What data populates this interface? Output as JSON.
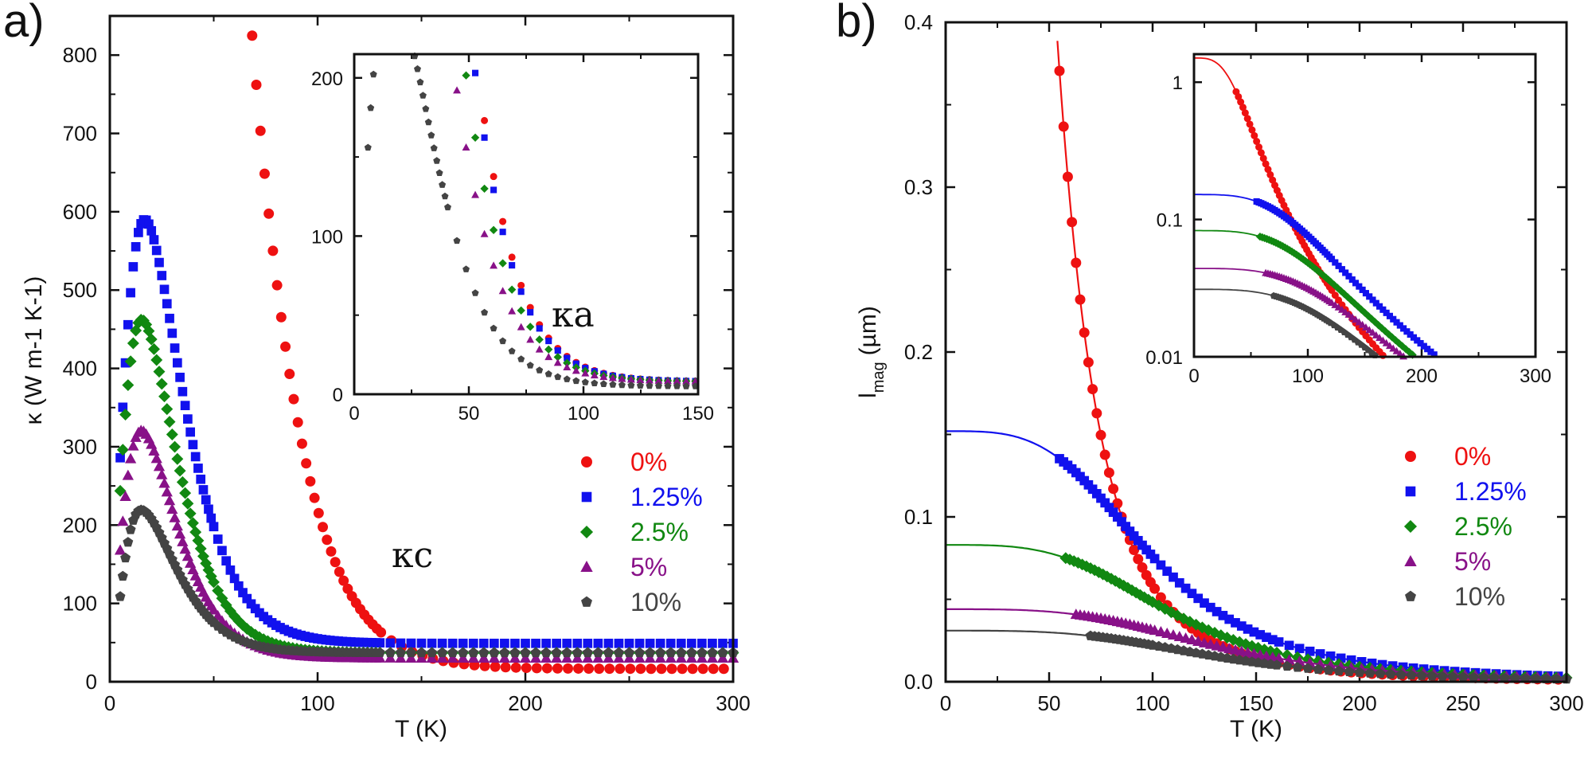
{
  "colors": {
    "s0": "#ee1111",
    "s1": "#1111ee",
    "s2": "#118811",
    "s3": "#881188",
    "s4": "#444444"
  },
  "chart_data": [
    {
      "id": "panel-a",
      "panel_label": "a)",
      "type": "scatter",
      "xlabel": "T (K)",
      "ylabel": "κ (W m-1 K-1)",
      "xlim": [
        0,
        300
      ],
      "ylim": [
        0,
        850
      ],
      "xticks": [
        0,
        100,
        200,
        300
      ],
      "yticks": [
        0,
        100,
        200,
        300,
        400,
        500,
        600,
        700,
        800
      ],
      "legend_position": "right-middle",
      "annotation": "κc",
      "series": [
        {
          "name": "0%",
          "marker": "circle",
          "color_key": "s0",
          "model": {
            "a": 7000,
            "b": 16.5,
            "c": 1.4,
            "d": 16.5,
            "e": 15,
            "f": 3.5
          },
          "t_min": 8
        },
        {
          "name": "1.25%",
          "marker": "square",
          "color_key": "s1",
          "model": {
            "a": 1400,
            "b": 12,
            "c": 1.35,
            "d": 49,
            "e": 12,
            "f": 3.2
          },
          "t_min": 5
        },
        {
          "name": "2.5%",
          "marker": "diamond",
          "color_key": "s2",
          "model": {
            "a": 1100,
            "b": 11,
            "c": 1.35,
            "d": 37,
            "e": 11,
            "f": 3.2
          },
          "t_min": 5
        },
        {
          "name": "5%",
          "marker": "triangle",
          "color_key": "s3",
          "model": {
            "a": 750,
            "b": 11,
            "c": 1.35,
            "d": 30,
            "e": 10,
            "f": 3.0
          },
          "t_min": 5
        },
        {
          "name": "10%",
          "marker": "pentagon",
          "color_key": "s4",
          "model": {
            "a": 470,
            "b": 11,
            "c": 1.35,
            "d": 37,
            "e": 9,
            "f": 3.0
          },
          "t_min": 5
        }
      ]
    },
    {
      "id": "panel-a-inset",
      "type": "scatter",
      "xlabel": "",
      "ylabel": "",
      "xlim": [
        0,
        150
      ],
      "ylim": [
        0,
        215
      ],
      "xticks": [
        0,
        50,
        100,
        150
      ],
      "yticks": [
        0,
        100,
        200
      ],
      "annotation": "κa",
      "series": [
        {
          "name": "0%",
          "marker": "circle",
          "color_key": "s0",
          "model": {
            "a": 2300,
            "b": 12,
            "c": 1.35,
            "d": 8,
            "e": 9,
            "f": 3.0
          },
          "t_min": 6
        },
        {
          "name": "1.25%",
          "marker": "square",
          "color_key": "s1",
          "model": {
            "a": 2150,
            "b": 12,
            "c": 1.35,
            "d": 8,
            "e": 10,
            "f": 3.0
          },
          "t_min": 6
        },
        {
          "name": "2.5%",
          "marker": "diamond",
          "color_key": "s2",
          "model": {
            "a": 1700,
            "b": 12,
            "c": 1.35,
            "d": 8,
            "e": 9.5,
            "f": 3.0
          },
          "t_min": 6
        },
        {
          "name": "5%",
          "marker": "triangle",
          "color_key": "s3",
          "model": {
            "a": 1300,
            "b": 12,
            "c": 1.35,
            "d": 8,
            "e": 9,
            "f": 3.0
          },
          "t_min": 6
        },
        {
          "name": "10%",
          "marker": "pentagon",
          "color_key": "s4",
          "model": {
            "a": 650,
            "b": 12,
            "c": 1.35,
            "d": 5,
            "e": 9,
            "f": 3.0
          },
          "t_min": 6
        }
      ]
    },
    {
      "id": "panel-b",
      "panel_label": "b)",
      "type": "scatter",
      "xlabel": "T (K)",
      "ylabel_main": "l",
      "ylabel_sub": "mag",
      "ylabel_unit": "(µm)",
      "xlim": [
        0,
        300
      ],
      "ylim": [
        0,
        0.4
      ],
      "xticks": [
        0,
        50,
        100,
        150,
        200,
        250,
        300
      ],
      "yticks": [
        0.0,
        0.1,
        0.2,
        0.3,
        0.4
      ],
      "ytick_labels": [
        "0.0",
        "0.1",
        "0.2",
        "0.3",
        "0.4"
      ],
      "legend_position": "right-middle",
      "series": [
        {
          "name": "0%",
          "marker": "circle",
          "color_key": "s0",
          "l0": 1.5,
          "T0": 40,
          "n": 3.5,
          "data_from": 37
        },
        {
          "name": "1.25%",
          "marker": "square",
          "color_key": "s1",
          "l0": 0.152,
          "T0": 100,
          "n": 3.5,
          "data_from": 55
        },
        {
          "name": "2.5%",
          "marker": "diamond",
          "color_key": "s2",
          "l0": 0.083,
          "T0": 110,
          "n": 3.5,
          "data_from": 58
        },
        {
          "name": "5%",
          "marker": "triangle",
          "color_key": "s3",
          "l0": 0.044,
          "T0": 130,
          "n": 3.5,
          "data_from": 63
        },
        {
          "name": "10%",
          "marker": "pentagon",
          "color_key": "s4",
          "l0": 0.031,
          "T0": 130,
          "n": 3.5,
          "data_from": 70
        }
      ]
    },
    {
      "id": "panel-b-inset",
      "type": "scatter",
      "yscale": "log",
      "xlim": [
        0,
        300
      ],
      "ylim": [
        0.01,
        1.6
      ],
      "xticks": [
        0,
        100,
        200,
        300
      ],
      "yticks": [
        0.01,
        0.1,
        1
      ],
      "ytick_labels": [
        "0.01",
        "0.1",
        "1"
      ]
    }
  ]
}
